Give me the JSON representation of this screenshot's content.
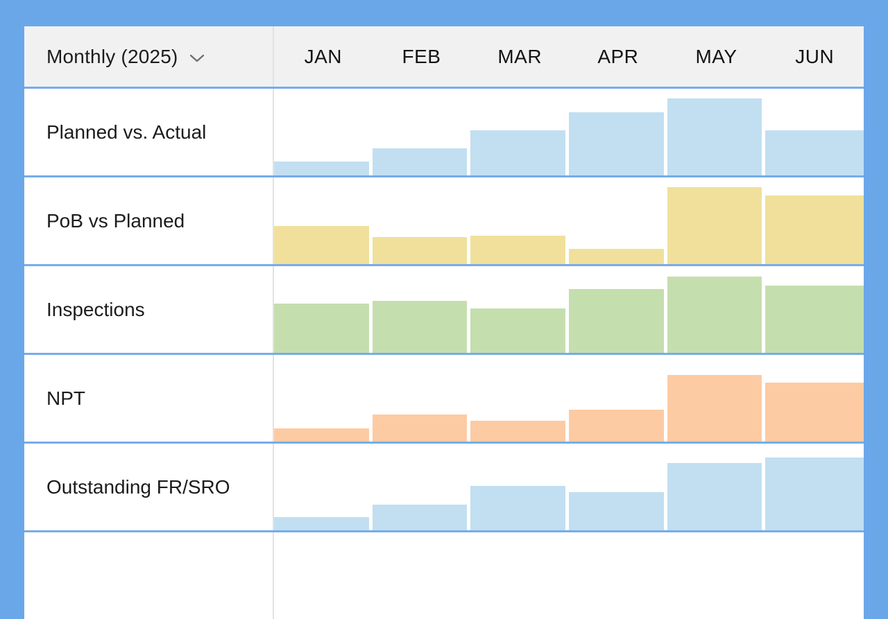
{
  "panel": {
    "period_selector": {
      "label": "Monthly (2025)",
      "icon": "chevron-down-icon"
    },
    "colors": {
      "background": "#6aa7e8",
      "grid_line": "#75ace9",
      "header_bg": "#f1f1f2",
      "divider": "#e2e2e6",
      "text": "#1c1c1c",
      "bar_blue": "#c1dff1",
      "bar_yellow": "#f0e09c",
      "bar_green": "#c5deae",
      "bar_orange": "#fdcba3"
    }
  },
  "chart_data": {
    "type": "bar",
    "categories": [
      "JAN",
      "FEB",
      "MAR",
      "APR",
      "MAY",
      "JUN"
    ],
    "value_scale": "relative bar height, 0-100 (no numeric axis shown)",
    "legend_position": "none",
    "grid": false,
    "rows": [
      {
        "label": "Planned vs. Actual",
        "color_key": "bar_blue",
        "values": [
          16,
          31,
          52,
          73,
          89,
          52
        ]
      },
      {
        "label": "PoB vs Planned",
        "color_key": "bar_yellow",
        "values": [
          44,
          31,
          33,
          18,
          89,
          79
        ]
      },
      {
        "label": "Inspections",
        "color_key": "bar_green",
        "values": [
          57,
          60,
          51,
          74,
          88,
          78
        ]
      },
      {
        "label": "NPT",
        "color_key": "bar_orange",
        "values": [
          15,
          31,
          24,
          37,
          77,
          68
        ]
      },
      {
        "label": "Outstanding FR/SRO",
        "color_key": "bar_blue",
        "values": [
          15,
          30,
          51,
          44,
          78,
          84
        ]
      },
      {
        "label": "",
        "color_key": "bar_blue",
        "values": []
      }
    ]
  }
}
